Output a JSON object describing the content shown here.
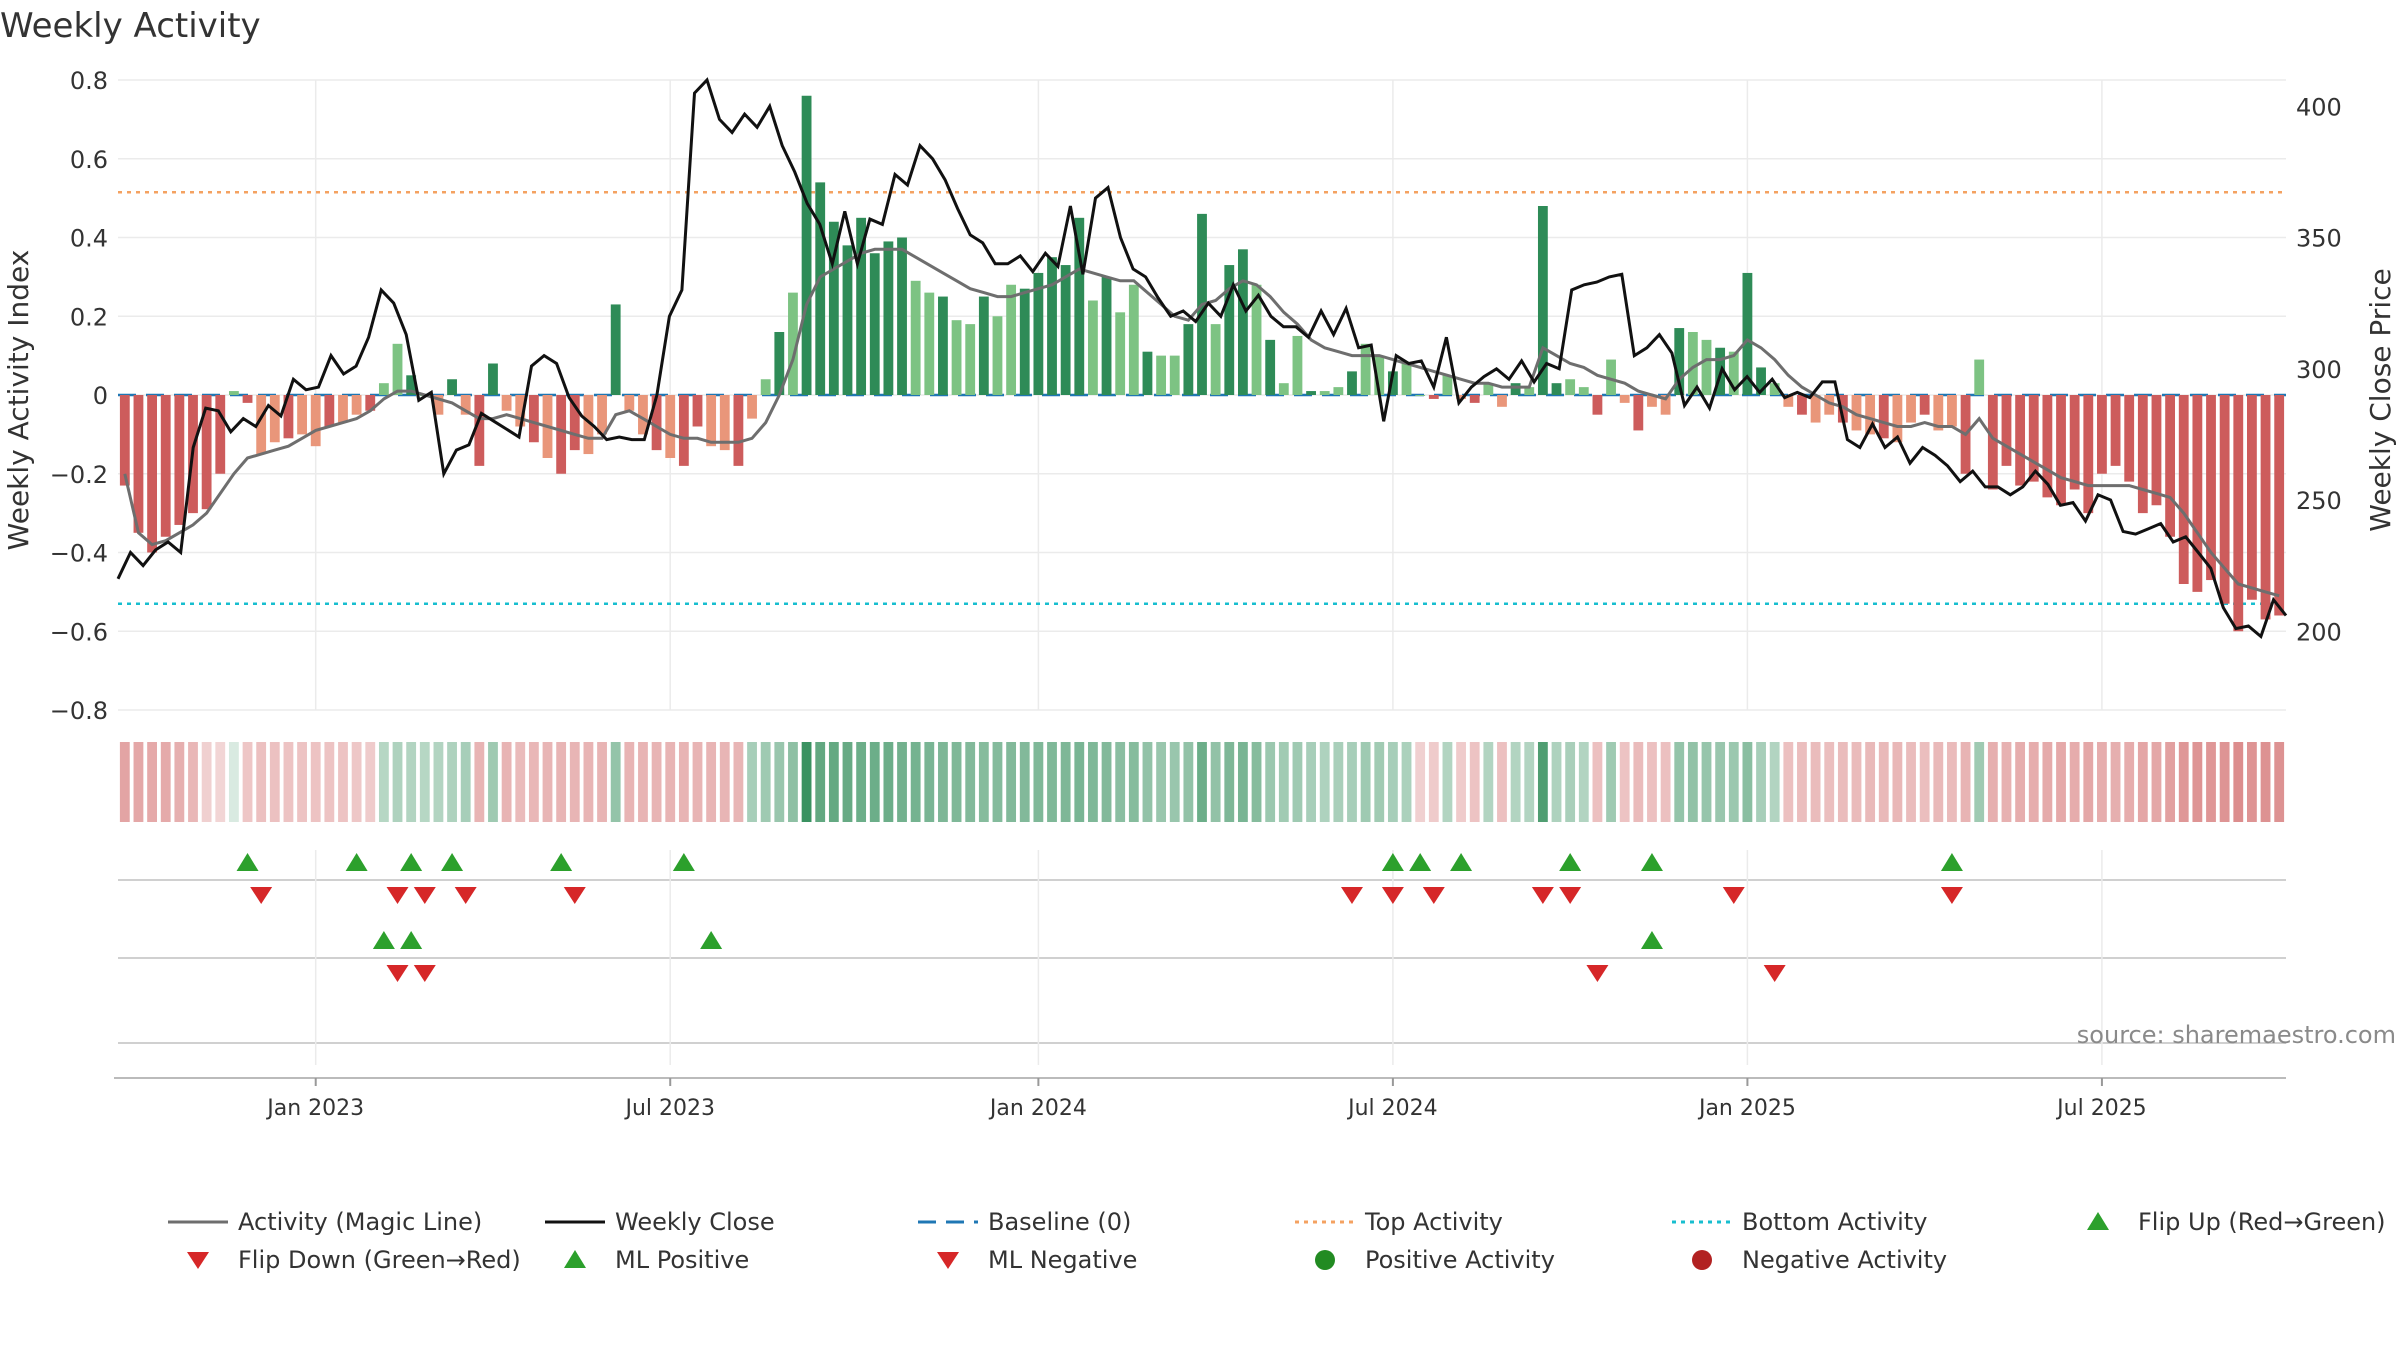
{
  "title": "Weekly Activity",
  "source": "source: sharemaestro.com",
  "colors": {
    "pos_dark": "#2e8b57",
    "pos_light": "#7dc383",
    "neg_dark": "#cd5c5c",
    "neg_light": "#e9967a",
    "magic": "#6e6e6e",
    "close": "#111111",
    "baseline": "#1f77b4",
    "top": "#f4a261",
    "bottom": "#17becf",
    "up": "#2ca02c",
    "down": "#d62728",
    "grid": "#ebebeb",
    "pos_dot": "#228b22",
    "neg_dot": "#b22222"
  },
  "chart_data": {
    "type": "bar",
    "title": "Weekly Activity",
    "ylabel": "Weekly Activity Index",
    "y2label": "Weekly Close Price",
    "ylim": [
      -0.8,
      0.8
    ],
    "y2lim": [
      170,
      410
    ],
    "yticks": [
      -0.8,
      -0.6,
      -0.4,
      -0.2,
      0,
      0.2,
      0.4,
      0.6,
      0.8
    ],
    "ytick_labels": [
      "−0.8",
      "−0.6",
      "−0.4",
      "−0.2",
      "0",
      "0.2",
      "0.4",
      "0.6",
      "0.8"
    ],
    "y2ticks": [
      200,
      250,
      300,
      350,
      400
    ],
    "y2tick_labels": [
      "200",
      "250",
      "300",
      "350",
      "400"
    ],
    "top_activity": 0.515,
    "bottom_activity": -0.53,
    "x_ticks": [
      {
        "week": 14,
        "label": "Jan 2023"
      },
      {
        "week": 40,
        "label": "Jul 2023"
      },
      {
        "week": 67,
        "label": "Jan 2024"
      },
      {
        "week": 93,
        "label": "Jul 2024"
      },
      {
        "week": 119,
        "label": "Jan 2025"
      },
      {
        "week": 145,
        "label": "Jul 2025"
      }
    ],
    "activity": [
      -0.23,
      -0.35,
      -0.4,
      -0.36,
      -0.33,
      -0.3,
      -0.29,
      -0.2,
      0.01,
      -0.02,
      -0.15,
      -0.12,
      -0.11,
      -0.1,
      -0.13,
      -0.08,
      -0.07,
      -0.05,
      -0.04,
      0.03,
      0.13,
      0.05,
      0.0,
      -0.05,
      0.04,
      -0.05,
      -0.18,
      0.08,
      -0.04,
      -0.08,
      -0.12,
      -0.16,
      -0.2,
      -0.14,
      -0.15,
      -0.1,
      0.23,
      -0.04,
      -0.1,
      -0.14,
      -0.16,
      -0.18,
      -0.08,
      -0.13,
      -0.14,
      -0.18,
      -0.06,
      0.04,
      0.16,
      0.26,
      0.76,
      0.54,
      0.44,
      0.38,
      0.45,
      0.36,
      0.39,
      0.4,
      0.29,
      0.26,
      0.25,
      0.19,
      0.18,
      0.25,
      0.2,
      0.28,
      0.27,
      0.31,
      0.35,
      0.33,
      0.45,
      0.24,
      0.3,
      0.21,
      0.28,
      0.11,
      0.1,
      0.1,
      0.18,
      0.46,
      0.18,
      0.33,
      0.37,
      0.28,
      0.14,
      0.03,
      0.15,
      0.01,
      0.01,
      0.02,
      0.06,
      0.13,
      0.1,
      0.06,
      0.08,
      0.0,
      -0.01,
      0.05,
      -0.01,
      -0.02,
      0.03,
      -0.03,
      0.03,
      0.02,
      0.48,
      0.03,
      0.04,
      0.02,
      -0.05,
      0.09,
      -0.02,
      -0.09,
      -0.03,
      -0.05,
      0.17,
      0.16,
      0.14,
      0.12,
      0.11,
      0.31,
      0.07,
      0.03,
      -0.03,
      -0.05,
      -0.07,
      -0.05,
      -0.07,
      -0.09,
      -0.1,
      -0.11,
      -0.12,
      -0.07,
      -0.05,
      -0.09,
      -0.08,
      -0.2,
      0.09,
      -0.24,
      -0.18,
      -0.23,
      -0.22,
      -0.26,
      -0.28,
      -0.24,
      -0.3,
      -0.2,
      -0.18,
      -0.22,
      -0.3,
      -0.28,
      -0.36,
      -0.48,
      -0.5,
      -0.47,
      -0.53,
      -0.6,
      -0.52,
      -0.57,
      -0.56
    ],
    "magic_line": [
      -0.2,
      -0.35,
      -0.38,
      -0.37,
      -0.35,
      -0.33,
      -0.3,
      -0.25,
      -0.2,
      -0.16,
      -0.15,
      -0.14,
      -0.13,
      -0.11,
      -0.09,
      -0.08,
      -0.07,
      -0.06,
      -0.04,
      -0.01,
      0.01,
      0.01,
      0.0,
      -0.01,
      -0.02,
      -0.04,
      -0.06,
      -0.06,
      -0.05,
      -0.06,
      -0.07,
      -0.08,
      -0.09,
      -0.1,
      -0.11,
      -0.11,
      -0.05,
      -0.04,
      -0.06,
      -0.08,
      -0.1,
      -0.11,
      -0.11,
      -0.12,
      -0.12,
      -0.12,
      -0.11,
      -0.07,
      0.0,
      0.09,
      0.23,
      0.3,
      0.32,
      0.34,
      0.36,
      0.37,
      0.37,
      0.37,
      0.35,
      0.33,
      0.31,
      0.29,
      0.27,
      0.26,
      0.25,
      0.25,
      0.26,
      0.27,
      0.28,
      0.3,
      0.32,
      0.31,
      0.3,
      0.29,
      0.29,
      0.26,
      0.23,
      0.2,
      0.19,
      0.23,
      0.24,
      0.27,
      0.29,
      0.28,
      0.25,
      0.21,
      0.18,
      0.14,
      0.12,
      0.11,
      0.1,
      0.1,
      0.1,
      0.09,
      0.08,
      0.07,
      0.06,
      0.05,
      0.04,
      0.03,
      0.03,
      0.02,
      0.02,
      0.02,
      0.12,
      0.1,
      0.08,
      0.07,
      0.05,
      0.04,
      0.03,
      0.01,
      0.0,
      -0.01,
      0.04,
      0.07,
      0.09,
      0.09,
      0.1,
      0.14,
      0.12,
      0.09,
      0.05,
      0.02,
      0.0,
      -0.02,
      -0.03,
      -0.05,
      -0.06,
      -0.07,
      -0.08,
      -0.08,
      -0.07,
      -0.08,
      -0.08,
      -0.1,
      -0.06,
      -0.11,
      -0.13,
      -0.15,
      -0.17,
      -0.19,
      -0.21,
      -0.22,
      -0.23,
      -0.23,
      -0.23,
      -0.23,
      -0.24,
      -0.25,
      -0.26,
      -0.3,
      -0.35,
      -0.4,
      -0.44,
      -0.48,
      -0.49,
      -0.5,
      -0.51
    ],
    "weekly_close": [
      220,
      230,
      225,
      231,
      234,
      230,
      270,
      285,
      284,
      276,
      281,
      278,
      286,
      282,
      296,
      292,
      293,
      305,
      298,
      301,
      312,
      330,
      325,
      313,
      288,
      291,
      260,
      269,
      271,
      283,
      280,
      277,
      274,
      301,
      305,
      302,
      289,
      282,
      278,
      273,
      274,
      273,
      273,
      290,
      320,
      330,
      405,
      410,
      395,
      390,
      397,
      392,
      400,
      385,
      375,
      363,
      355,
      340,
      360,
      340,
      357,
      355,
      374,
      370,
      385,
      380,
      372,
      361,
      351,
      348,
      340,
      340,
      343,
      337,
      344,
      339,
      362,
      336,
      365,
      369,
      350,
      338,
      335,
      327,
      320,
      322,
      318,
      325,
      320,
      332,
      322,
      328,
      320,
      316,
      316,
      312,
      322,
      313,
      323,
      308,
      309,
      280,
      305,
      302,
      303,
      293,
      312,
      287,
      293,
      297,
      300,
      296,
      303,
      295,
      302,
      300,
      330,
      332,
      333,
      335,
      336,
      305,
      308,
      313,
      306,
      286,
      293,
      285,
      300,
      292,
      297,
      291,
      296,
      289,
      291,
      289,
      295,
      295,
      273,
      270,
      279,
      270,
      274,
      264,
      270,
      267,
      263,
      257,
      261,
      255,
      255,
      252,
      255,
      261,
      256,
      248,
      249,
      242,
      252,
      250,
      238,
      237,
      239,
      241,
      234,
      236,
      230,
      224,
      209,
      201,
      202,
      198,
      212,
      206
    ],
    "heat_strip": [
      -0.4,
      -0.38,
      -0.37,
      -0.36,
      -0.33,
      -0.27,
      -0.12,
      -0.08,
      0.0,
      -0.18,
      -0.22,
      -0.21,
      -0.2,
      -0.2,
      -0.2,
      -0.2,
      -0.2,
      -0.17,
      -0.15,
      0.18,
      0.22,
      0.2,
      0.18,
      0.2,
      0.22,
      0.25,
      -0.3,
      0.3,
      -0.3,
      -0.25,
      -0.27,
      -0.28,
      -0.28,
      -0.28,
      -0.29,
      -0.3,
      0.35,
      -0.3,
      -0.3,
      -0.3,
      -0.3,
      -0.3,
      -0.29,
      -0.29,
      -0.28,
      -0.28,
      0.25,
      0.3,
      0.33,
      0.38,
      0.8,
      0.6,
      0.59,
      0.58,
      0.55,
      0.55,
      0.55,
      0.52,
      0.5,
      0.48,
      0.46,
      0.45,
      0.44,
      0.42,
      0.43,
      0.44,
      0.44,
      0.45,
      0.45,
      0.46,
      0.48,
      0.45,
      0.44,
      0.4,
      0.42,
      0.36,
      0.33,
      0.33,
      0.36,
      0.55,
      0.36,
      0.46,
      0.48,
      0.42,
      0.32,
      0.28,
      0.3,
      0.25,
      0.22,
      0.24,
      0.25,
      0.3,
      0.28,
      0.25,
      0.23,
      -0.12,
      -0.15,
      0.2,
      -0.15,
      -0.2,
      0.2,
      -0.22,
      0.2,
      0.2,
      0.7,
      0.22,
      0.24,
      0.2,
      -0.22,
      0.3,
      -0.2,
      -0.25,
      -0.22,
      -0.22,
      0.35,
      0.36,
      0.34,
      0.33,
      0.32,
      0.4,
      0.25,
      0.2,
      -0.22,
      -0.23,
      -0.24,
      -0.23,
      -0.24,
      -0.25,
      -0.26,
      -0.26,
      -0.27,
      -0.24,
      -0.23,
      -0.26,
      -0.25,
      -0.3,
      0.3,
      -0.33,
      -0.32,
      -0.34,
      -0.34,
      -0.36,
      -0.37,
      -0.35,
      -0.38,
      -0.34,
      -0.33,
      -0.35,
      -0.39,
      -0.38,
      -0.42,
      -0.48,
      -0.5,
      -0.48,
      -0.5,
      -0.55,
      -0.5,
      -0.52,
      -0.52
    ],
    "flip_up_weeks": [
      9,
      17,
      21,
      24,
      32,
      41,
      93,
      95,
      98,
      106,
      112,
      134
    ],
    "flip_down_weeks": [
      10,
      20,
      22,
      25,
      33,
      90,
      93,
      96,
      104,
      106,
      118,
      134
    ],
    "ml_positive_weeks": [
      19,
      21,
      43,
      112
    ],
    "ml_negative_weeks": [
      20,
      22,
      108,
      121
    ],
    "positive_activity_weeks": [],
    "negative_activity_weeks": []
  },
  "legend": [
    {
      "label": "Activity (Magic Line)",
      "icon": "magic-line"
    },
    {
      "label": "Weekly Close",
      "icon": "close-line"
    },
    {
      "label": "Baseline (0)",
      "icon": "baseline-dash"
    },
    {
      "label": "Top Activity",
      "icon": "top-dot"
    },
    {
      "label": "Bottom Activity",
      "icon": "bottom-dot"
    },
    {
      "label": "Flip Up (Red→Green)",
      "icon": "triangle-up"
    },
    {
      "label": "Flip Down (Green→Red)",
      "icon": "triangle-down"
    },
    {
      "label": "ML Positive",
      "icon": "triangle-up"
    },
    {
      "label": "ML Negative",
      "icon": "triangle-down"
    },
    {
      "label": "Positive Activity",
      "icon": "circle-green"
    },
    {
      "label": "Negative Activity",
      "icon": "circle-red"
    }
  ]
}
